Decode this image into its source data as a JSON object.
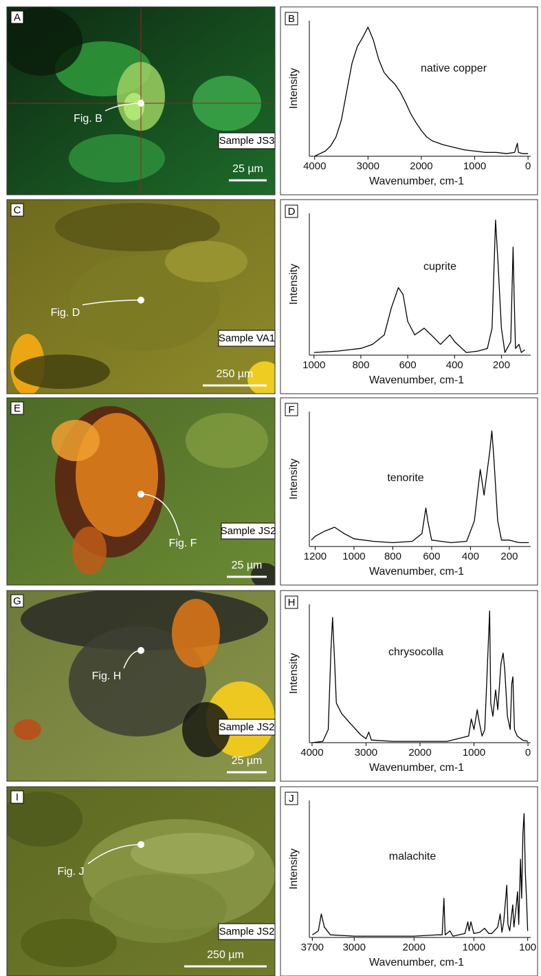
{
  "micrographs": [
    {
      "label": "A",
      "pointer": "Fig. B",
      "sample": "Sample JS3",
      "scale": "25 µm"
    },
    {
      "label": "C",
      "pointer": "Fig. D",
      "sample": "Sample VA1",
      "scale": "250 µm"
    },
    {
      "label": "E",
      "pointer": "Fig. F",
      "sample": "Sample JS2",
      "scale": "25 µm"
    },
    {
      "label": "G",
      "pointer": "Fig. H",
      "sample": "Sample JS2",
      "scale": "25 µm"
    },
    {
      "label": "I",
      "pointer": "Fig. J",
      "sample": "Sample JS2",
      "scale": "250 µm"
    }
  ],
  "chart_data": [
    {
      "type": "line",
      "panel_label": "B",
      "annotation": "native copper",
      "ylabel": "Intensity",
      "xlabel": "Wavenumber, cm-1",
      "color": "#000000",
      "xlim": [
        4100,
        -50
      ],
      "xticks": [
        4000,
        3000,
        2000,
        1000,
        0
      ],
      "ylim": [
        0,
        105
      ],
      "x": [
        4000,
        3900,
        3800,
        3700,
        3600,
        3500,
        3400,
        3300,
        3200,
        3100,
        3000,
        2900,
        2800,
        2700,
        2600,
        2500,
        2400,
        2300,
        2200,
        2100,
        2000,
        1900,
        1800,
        1600,
        1400,
        1200,
        1000,
        800,
        600,
        400,
        250,
        200,
        180,
        100,
        0
      ],
      "values": [
        0,
        2,
        4,
        8,
        15,
        28,
        50,
        72,
        85,
        92,
        100,
        90,
        75,
        65,
        60,
        56,
        50,
        42,
        33,
        26,
        20,
        15,
        12,
        9,
        7,
        5,
        4,
        3,
        3,
        2,
        3,
        10,
        3,
        2,
        2
      ]
    },
    {
      "type": "line",
      "panel_label": "D",
      "annotation": "cuprite",
      "ylabel": "Intensity",
      "xlabel": "Wavenumber, cm-1",
      "color": "#000000",
      "xlim": [
        1020,
        75
      ],
      "xticks": [
        1000,
        800,
        600,
        400,
        200
      ],
      "ylim": [
        0,
        105
      ],
      "x": [
        1000,
        900,
        800,
        750,
        700,
        670,
        640,
        620,
        600,
        570,
        530,
        500,
        460,
        420,
        400,
        350,
        300,
        260,
        240,
        225,
        215,
        200,
        185,
        160,
        150,
        145,
        140,
        125,
        115,
        100
      ],
      "values": [
        2,
        3,
        5,
        8,
        15,
        35,
        50,
        45,
        25,
        15,
        20,
        15,
        8,
        15,
        10,
        2,
        3,
        5,
        20,
        100,
        70,
        20,
        2,
        10,
        80,
        40,
        5,
        8,
        2,
        4
      ]
    },
    {
      "type": "line",
      "panel_label": "F",
      "annotation": "tenorite",
      "ylabel": "Intensity",
      "xlabel": "Wavenumber, cm-1",
      "color": "#000000",
      "xlim": [
        1230,
        90
      ],
      "xticks": [
        1200,
        1000,
        800,
        600,
        400,
        200
      ],
      "ylim": [
        0,
        105
      ],
      "x": [
        1220,
        1200,
        1150,
        1100,
        1050,
        1000,
        900,
        800,
        700,
        650,
        630,
        620,
        600,
        500,
        420,
        380,
        350,
        330,
        300,
        290,
        280,
        260,
        240,
        200,
        150,
        100
      ],
      "values": [
        5,
        8,
        12,
        15,
        10,
        6,
        4,
        3,
        4,
        10,
        30,
        20,
        5,
        3,
        4,
        20,
        60,
        40,
        75,
        90,
        70,
        20,
        5,
        5,
        3,
        3
      ]
    },
    {
      "type": "line",
      "panel_label": "H",
      "annotation": "chrysocolla",
      "ylabel": "Intensity",
      "xlabel": "Wavenumber, cm-1",
      "color": "#000000",
      "xlim": [
        4050,
        -50
      ],
      "xticks": [
        4000,
        3000,
        2000,
        1000,
        0
      ],
      "ylim": [
        0,
        105
      ],
      "x": [
        4000,
        3800,
        3700,
        3650,
        3620,
        3580,
        3550,
        3450,
        3300,
        3100,
        3000,
        2950,
        2900,
        2500,
        2000,
        1500,
        1100,
        1050,
        1000,
        940,
        900,
        850,
        800,
        710,
        690,
        650,
        600,
        560,
        500,
        460,
        430,
        380,
        330,
        300,
        280,
        250,
        200,
        100,
        0
      ],
      "values": [
        0,
        1,
        10,
        70,
        95,
        60,
        30,
        22,
        15,
        6,
        3,
        8,
        2,
        1,
        1,
        1,
        5,
        18,
        10,
        25,
        15,
        5,
        10,
        100,
        30,
        20,
        40,
        25,
        60,
        68,
        55,
        20,
        10,
        45,
        50,
        10,
        5,
        2,
        1
      ]
    },
    {
      "type": "line",
      "panel_label": "J",
      "annotation": "malachite",
      "ylabel": "Intensity",
      "xlabel": "Wavenumber, cm-1",
      "color": "#000000",
      "xlim": [
        3750,
        50
      ],
      "xticks": [
        3700,
        3000,
        2000,
        1000,
        100
      ],
      "ylim": [
        0,
        105
      ],
      "x": [
        3700,
        3600,
        3550,
        3500,
        3400,
        3000,
        2000,
        1600,
        1530,
        1500,
        1480,
        1400,
        1350,
        1150,
        1100,
        1080,
        1050,
        1000,
        900,
        820,
        750,
        700,
        600,
        560,
        530,
        500,
        450,
        430,
        400,
        350,
        330,
        300,
        270,
        250,
        220,
        200,
        180,
        160,
        140,
        120,
        100
      ],
      "values": [
        2,
        5,
        18,
        8,
        2,
        1,
        1,
        2,
        2,
        30,
        2,
        5,
        1,
        3,
        12,
        5,
        12,
        3,
        4,
        7,
        3,
        3,
        8,
        18,
        4,
        12,
        40,
        10,
        5,
        25,
        8,
        20,
        35,
        10,
        60,
        30,
        80,
        95,
        50,
        30,
        5
      ]
    }
  ]
}
